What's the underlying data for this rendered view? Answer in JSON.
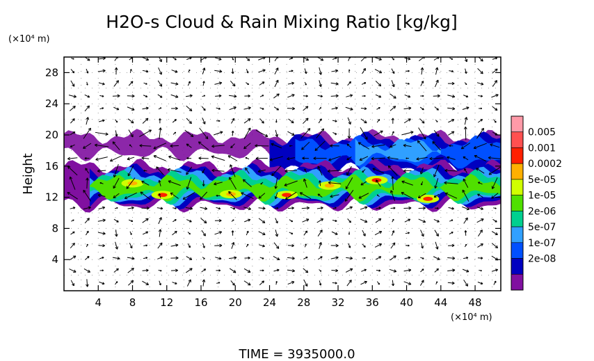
{
  "chart_data": {
    "type": "heatmap",
    "title": "H2O-s Cloud & Rain Mixing Ratio [kg/kg]",
    "ylabel": "Height",
    "y_unit": "(×10⁴ m)",
    "x_unit": "(×10⁴ m)",
    "time_label": "TIME  =  3935000.0",
    "xlim": [
      0,
      51
    ],
    "ylim": [
      0,
      30
    ],
    "x_ticks": [
      "4",
      "8",
      "12",
      "16",
      "20",
      "24",
      "28",
      "32",
      "36",
      "40",
      "44",
      "48"
    ],
    "y_ticks": [
      "4",
      "8",
      "12",
      "16",
      "20",
      "24",
      "28"
    ],
    "colorbar_levels": [
      "0.005",
      "0.001",
      "0.0002",
      "5e-05",
      "1e-05",
      "2e-06",
      "5e-07",
      "1e-07",
      "2e-08"
    ],
    "colorbar_colors": [
      "#ff9aa8",
      "#ff5050",
      "#ff2000",
      "#ffb000",
      "#d0ff00",
      "#50e000",
      "#00d090",
      "#30a0ff",
      "#0050ff",
      "#0000c0",
      "#8010a0"
    ],
    "cloud_bands": [
      {
        "name": "upper",
        "x_start": 0,
        "x_end": 51,
        "y_low": 15.5,
        "y_high": 19.5
      },
      {
        "name": "lower",
        "x_start": 0,
        "x_end": 51,
        "y_low": 11,
        "y_high": 16
      }
    ],
    "grid": "dotted"
  }
}
